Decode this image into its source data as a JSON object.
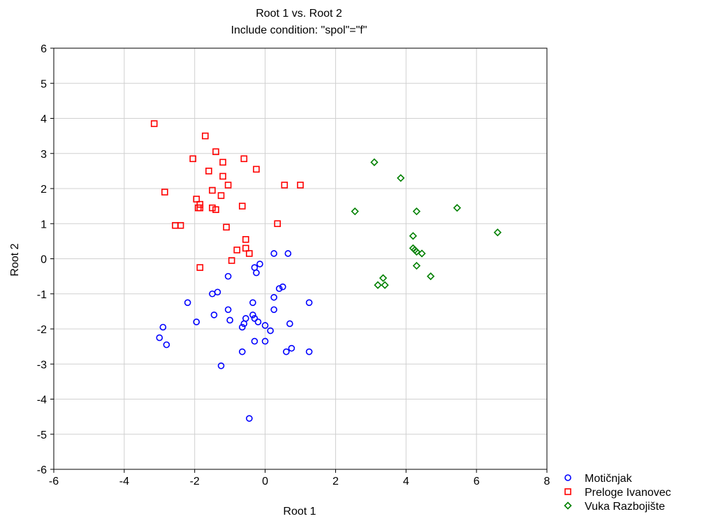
{
  "chart_data": {
    "type": "scatter",
    "title": "Root 1 vs. Root 2",
    "subtitle": "Include condition: \"spol\"=\"f\"",
    "xlabel": "Root 1",
    "ylabel": "Root 2",
    "xlim": [
      -6,
      8
    ],
    "ylim": [
      -6,
      6
    ],
    "xticks": [
      -6,
      -4,
      -2,
      0,
      2,
      4,
      6,
      8
    ],
    "yticks": [
      -6,
      -5,
      -4,
      -3,
      -2,
      -1,
      0,
      1,
      2,
      3,
      4,
      5,
      6
    ],
    "grid": true,
    "legend_position": "bottom-right",
    "series": [
      {
        "name": "Motičnjak",
        "marker": "circle",
        "color": "#0000ff",
        "points": [
          [
            0.25,
            0.15
          ],
          [
            0.65,
            0.15
          ],
          [
            -0.3,
            -0.25
          ],
          [
            -0.15,
            -0.15
          ],
          [
            -0.25,
            -0.4
          ],
          [
            -1.05,
            -0.5
          ],
          [
            0.4,
            -0.85
          ],
          [
            0.5,
            -0.8
          ],
          [
            0.25,
            -1.1
          ],
          [
            -1.5,
            -1.0
          ],
          [
            -1.35,
            -0.95
          ],
          [
            -2.2,
            -1.25
          ],
          [
            -0.35,
            -1.25
          ],
          [
            1.25,
            -1.25
          ],
          [
            -1.05,
            -1.45
          ],
          [
            0.25,
            -1.45
          ],
          [
            -1.45,
            -1.6
          ],
          [
            -0.35,
            -1.6
          ],
          [
            -0.3,
            -1.7
          ],
          [
            -0.55,
            -1.7
          ],
          [
            -0.2,
            -1.8
          ],
          [
            -1.95,
            -1.8
          ],
          [
            -1.0,
            -1.75
          ],
          [
            0.7,
            -1.85
          ],
          [
            -0.6,
            -1.85
          ],
          [
            0.0,
            -1.9
          ],
          [
            -0.65,
            -1.95
          ],
          [
            -2.9,
            -1.95
          ],
          [
            0.15,
            -2.05
          ],
          [
            -3.0,
            -2.25
          ],
          [
            -0.3,
            -2.35
          ],
          [
            0.0,
            -2.35
          ],
          [
            -2.8,
            -2.45
          ],
          [
            0.75,
            -2.55
          ],
          [
            0.6,
            -2.65
          ],
          [
            -0.65,
            -2.65
          ],
          [
            1.25,
            -2.65
          ],
          [
            -1.25,
            -3.05
          ],
          [
            -0.45,
            -4.55
          ]
        ]
      },
      {
        "name": "Preloge Ivanovec",
        "marker": "square",
        "color": "#ff0000",
        "points": [
          [
            -3.15,
            3.85
          ],
          [
            -1.7,
            3.5
          ],
          [
            -1.4,
            3.05
          ],
          [
            -2.05,
            2.85
          ],
          [
            -1.2,
            2.75
          ],
          [
            -0.6,
            2.85
          ],
          [
            -1.6,
            2.5
          ],
          [
            -0.25,
            2.55
          ],
          [
            -1.2,
            2.35
          ],
          [
            -1.05,
            2.1
          ],
          [
            0.55,
            2.1
          ],
          [
            1.0,
            2.1
          ],
          [
            -1.5,
            1.95
          ],
          [
            -2.85,
            1.9
          ],
          [
            -1.25,
            1.8
          ],
          [
            -1.95,
            1.7
          ],
          [
            -1.85,
            1.55
          ],
          [
            -1.9,
            1.45
          ],
          [
            -1.85,
            1.45
          ],
          [
            -1.5,
            1.45
          ],
          [
            -1.4,
            1.4
          ],
          [
            -0.65,
            1.5
          ],
          [
            0.35,
            1.0
          ],
          [
            -2.55,
            0.95
          ],
          [
            -2.4,
            0.95
          ],
          [
            -1.1,
            0.9
          ],
          [
            -0.55,
            0.55
          ],
          [
            -0.55,
            0.3
          ],
          [
            -0.8,
            0.25
          ],
          [
            -0.45,
            0.15
          ],
          [
            -0.95,
            -0.05
          ],
          [
            -1.85,
            -0.25
          ]
        ]
      },
      {
        "name": "Vuka Razbojište",
        "marker": "diamond",
        "color": "#008000",
        "points": [
          [
            3.1,
            2.75
          ],
          [
            3.85,
            2.3
          ],
          [
            2.55,
            1.35
          ],
          [
            4.3,
            1.35
          ],
          [
            5.45,
            1.45
          ],
          [
            6.6,
            0.75
          ],
          [
            4.2,
            0.65
          ],
          [
            4.2,
            0.3
          ],
          [
            4.25,
            0.25
          ],
          [
            4.3,
            0.2
          ],
          [
            4.45,
            0.15
          ],
          [
            4.3,
            -0.2
          ],
          [
            4.7,
            -0.5
          ],
          [
            3.35,
            -0.55
          ],
          [
            3.2,
            -0.75
          ],
          [
            3.4,
            -0.75
          ]
        ]
      }
    ]
  }
}
